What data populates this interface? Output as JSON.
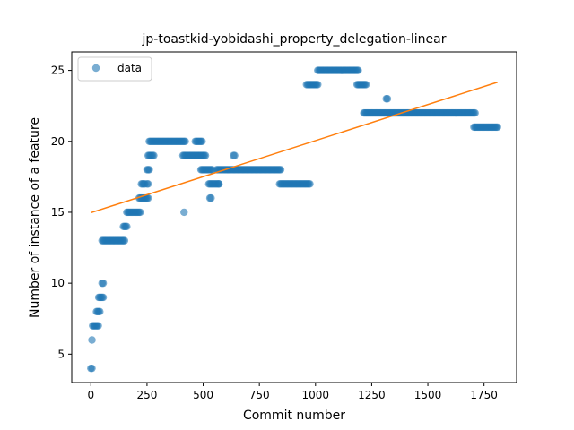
{
  "chart_data": {
    "type": "scatter",
    "title": "jp-toastkid-yobidashi_property_delegation-linear",
    "xlabel": "Commit number",
    "ylabel": "Number of instance of a feature",
    "xlim": [
      -85,
      1895
    ],
    "ylim": [
      3,
      26.3
    ],
    "xticks": [
      0,
      250,
      500,
      750,
      1000,
      1250,
      1500,
      1750
    ],
    "yticks": [
      5,
      10,
      15,
      20,
      25
    ],
    "grid": false,
    "legend": {
      "placement": "top-left",
      "entries": [
        "data"
      ]
    },
    "colors": {
      "data": "#1f77b4",
      "fit": "#ff7f0e"
    },
    "series": [
      {
        "name": "data",
        "kind": "scatter",
        "segments": [
          {
            "x": [
              0,
              5
            ],
            "y": 4
          },
          {
            "x": [
              5,
              8
            ],
            "y": 6
          },
          {
            "x": [
              8,
              35
            ],
            "y": 7
          },
          {
            "x": [
              25,
              40
            ],
            "y": 8
          },
          {
            "x": [
              35,
              55
            ],
            "y": 9
          },
          {
            "x": [
              50,
              55
            ],
            "y": 10
          },
          {
            "x": [
              50,
              150
            ],
            "y": 13
          },
          {
            "x": [
              145,
              160
            ],
            "y": 14
          },
          {
            "x": [
              160,
              220
            ],
            "y": 15
          },
          {
            "x": [
              215,
              255
            ],
            "y": 16
          },
          {
            "x": [
              225,
              240
            ],
            "y": 17
          },
          {
            "x": [
              250,
              255
            ],
            "y": 17
          },
          {
            "x": [
              250,
              260
            ],
            "y": 18
          },
          {
            "x": [
              255,
              280
            ],
            "y": 19
          },
          {
            "x": [
              260,
              420
            ],
            "y": 20
          },
          {
            "x": [
              410,
              510
            ],
            "y": 19
          },
          {
            "x": [
              465,
              495
            ],
            "y": 20
          },
          {
            "x": [
              490,
              540
            ],
            "y": 18
          },
          {
            "x": [
              525,
              570
            ],
            "y": 17
          },
          {
            "x": [
              530,
              535
            ],
            "y": 16
          },
          {
            "x": [
              560,
              845
            ],
            "y": 18
          },
          {
            "x": [
              635,
              640
            ],
            "y": 19
          },
          {
            "x": [
              840,
              975
            ],
            "y": 17
          },
          {
            "x": [
              960,
              1010
            ],
            "y": 24
          },
          {
            "x": [
              1010,
              1190
            ],
            "y": 25
          },
          {
            "x": [
              1185,
              1225
            ],
            "y": 24
          },
          {
            "x": [
              1215,
              1710
            ],
            "y": 22
          },
          {
            "x": [
              1315,
              1320
            ],
            "y": 23
          },
          {
            "x": [
              1705,
              1810
            ],
            "y": 21
          }
        ],
        "points": [
          {
            "x": 415,
            "y": 15
          },
          {
            "x": 570,
            "y": 17
          }
        ]
      },
      {
        "name": "",
        "kind": "line",
        "x": [
          0,
          1810
        ],
        "y": [
          14.97,
          24.17
        ]
      }
    ]
  }
}
